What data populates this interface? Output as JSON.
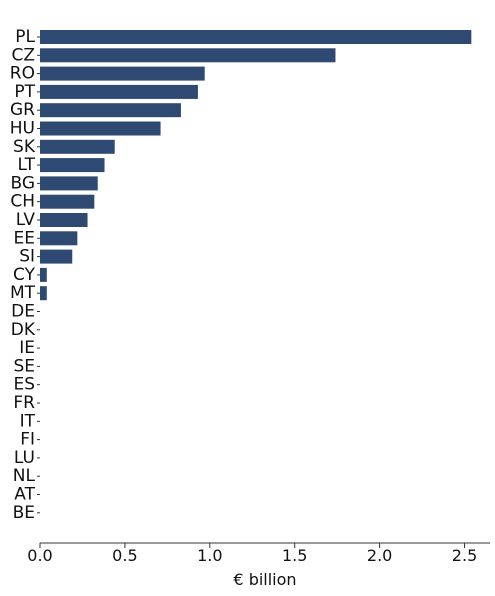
{
  "chart_data": {
    "type": "bar",
    "orientation": "horizontal",
    "categories": [
      "PL",
      "CZ",
      "RO",
      "PT",
      "GR",
      "HU",
      "SK",
      "LT",
      "BG",
      "CH",
      "LV",
      "EE",
      "SI",
      "CY",
      "MT",
      "DE",
      "DK",
      "IE",
      "SE",
      "ES",
      "FR",
      "IT",
      "FI",
      "LU",
      "NL",
      "AT",
      "BE"
    ],
    "values": [
      2.54,
      1.74,
      0.97,
      0.93,
      0.83,
      0.71,
      0.44,
      0.38,
      0.34,
      0.32,
      0.28,
      0.22,
      0.19,
      0.04,
      0.04,
      0,
      0,
      0,
      0,
      0,
      0,
      0,
      0,
      0,
      0,
      0,
      0
    ],
    "xlabel": "€ billion",
    "ylabel": "",
    "title": "",
    "xlim": [
      0,
      2.65
    ],
    "xticks": [
      0.0,
      0.5,
      1.0,
      1.5,
      2.0,
      2.5
    ],
    "xtick_labels": [
      "0.0",
      "0.5",
      "1.0",
      "1.5",
      "2.0",
      "2.5"
    ],
    "grid": false,
    "bar_color": "#2e4a73"
  }
}
